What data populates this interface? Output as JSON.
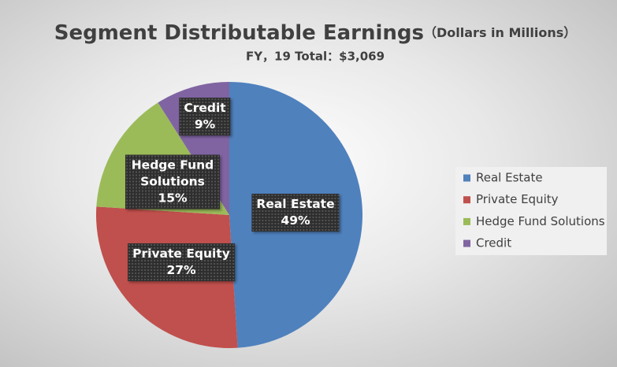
{
  "chart_data": {
    "type": "pie",
    "title": "Segment Distributable Earnings",
    "title_note": "（Dollars in Millions）",
    "subtitle": "FY，19 Total：$3,069",
    "categories": [
      "Real Estate",
      "Private Equity",
      "Hedge Fund Solutions",
      "Credit"
    ],
    "values": [
      49,
      27,
      15,
      9
    ],
    "value_labels": [
      "49%",
      "27%",
      "15%",
      "9%"
    ],
    "colors": [
      "#4f81bd",
      "#c0504d",
      "#9bbb59",
      "#8064a2"
    ],
    "legend": "right"
  }
}
